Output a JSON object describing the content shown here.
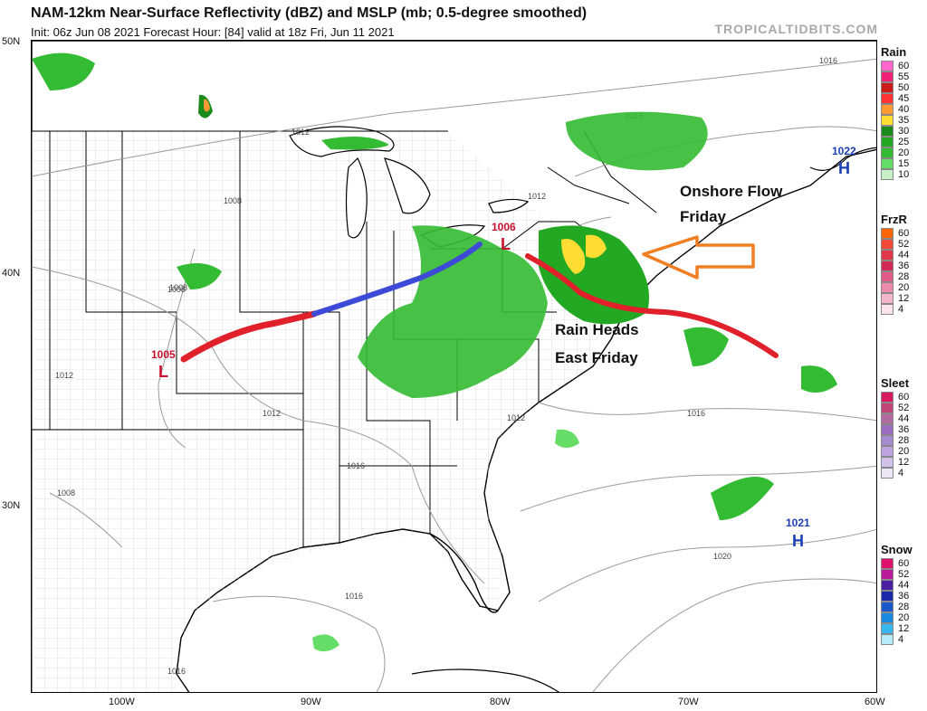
{
  "header": {
    "title": "NAM-12km Near-Surface Reflectivity (dBZ) and MSLP (mb; 0.5-degree smoothed)",
    "subtitle": "Init: 06z Jun 08 2021   Forecast Hour: [84]   valid at 18z Fri, Jun 11 2021",
    "brand": "TROPICALTIDBITS.COM"
  },
  "axes": {
    "lat_labels": [
      "50N",
      "40N",
      "30N"
    ],
    "lon_labels": [
      "100W",
      "90W",
      "80W",
      "70W",
      "60W"
    ]
  },
  "pressure_centers": [
    {
      "value": "1005",
      "type": "L",
      "color": "#c8102e"
    },
    {
      "value": "1006",
      "type": "L",
      "color": "#c8102e"
    },
    {
      "value": "1022",
      "type": "H",
      "color": "#1a3fb5"
    },
    {
      "value": "1021",
      "type": "H",
      "color": "#1a3fb5"
    }
  ],
  "isobar_labels": [
    "1016",
    "1016",
    "1012",
    "1008",
    "1008",
    "1012",
    "1012",
    "1012",
    "1016",
    "1008",
    "1016",
    "1016",
    "1016",
    "1020",
    "1012",
    "1008"
  ],
  "annotations": {
    "onshore_line1": "Onshore Flow",
    "onshore_line2": "Friday",
    "rain_line1": "Rain Heads",
    "rain_line2": "East Friday",
    "arrow_color": "#f07f22",
    "warm_front_color": "#e0202a",
    "cold_front_color": "#3d4ad6"
  },
  "legends": [
    {
      "title": "Rain",
      "ticks": [
        "60",
        "55",
        "50",
        "45",
        "40",
        "35",
        "30",
        "25",
        "20",
        "15",
        "10"
      ],
      "colors": [
        "#ff66cc",
        "#ee2277",
        "#cc1a1a",
        "#ff3333",
        "#ff9933",
        "#ffdd33",
        "#1a8a1a",
        "#22a822",
        "#33bb33",
        "#66dd66",
        "#c8f0c8"
      ]
    },
    {
      "title": "FrzR",
      "ticks": [
        "60",
        "52",
        "44",
        "36",
        "28",
        "20",
        "12",
        "4"
      ],
      "colors": [
        "#ff6600",
        "#f04a3a",
        "#e0384a",
        "#d02a55",
        "#e05c86",
        "#ec8aab",
        "#f4b6cb",
        "#fce4ec"
      ]
    },
    {
      "title": "Sleet",
      "ticks": [
        "60",
        "52",
        "44",
        "36",
        "28",
        "20",
        "12",
        "4"
      ],
      "colors": [
        "#d81b60",
        "#c2457a",
        "#b06aa0",
        "#9c6cc0",
        "#a68ad0",
        "#bda4de",
        "#d2c2ea",
        "#ece6f6"
      ]
    },
    {
      "title": "Snow",
      "ticks": [
        "60",
        "52",
        "44",
        "36",
        "28",
        "20",
        "12",
        "4"
      ],
      "colors": [
        "#e0116c",
        "#bb1a9a",
        "#4a1ea0",
        "#1a2aa8",
        "#1a58c8",
        "#1a8ade",
        "#38b6ee",
        "#b6ecfa"
      ]
    }
  ]
}
